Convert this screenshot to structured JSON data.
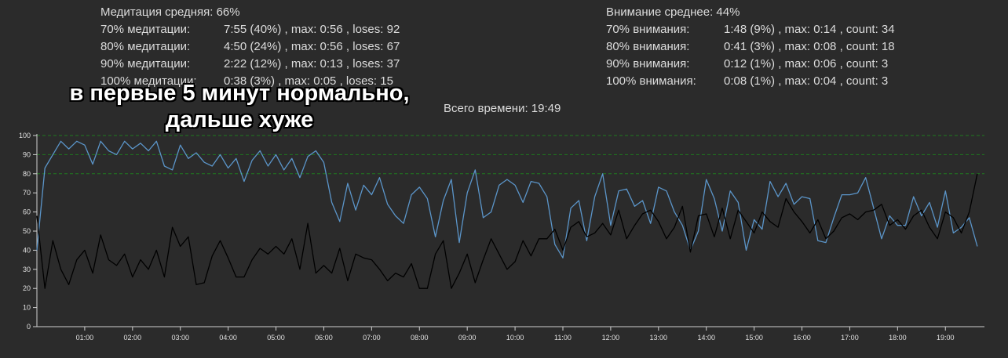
{
  "meditation": {
    "title": "Медитация средняя: 66%",
    "rows": [
      {
        "label": "70% медитации:",
        "value": "7:55 (40%) , max: 0:56 , loses: 92"
      },
      {
        "label": "80% медитации:",
        "value": "4:50 (24%) , max: 0:56 , loses: 67"
      },
      {
        "label": "90% медитации:",
        "value": "2:22 (12%) , max: 0:13 , loses: 37"
      },
      {
        "label": "100% медитации:",
        "value": "0:38 (3%) , max: 0:05 , loses: 15"
      }
    ]
  },
  "attention": {
    "title": "Внимание среднее: 44%",
    "rows": [
      {
        "label": "70% внимания:",
        "value": "1:48 (9%) , max: 0:14 , count: 34"
      },
      {
        "label": "80% внимания:",
        "value": "0:41 (3%) , max: 0:08 , count: 18"
      },
      {
        "label": "90% внимания:",
        "value": "0:12 (1%) , max: 0:06 , count: 3"
      },
      {
        "label": "100% внимания:",
        "value": "0:08 (1%) , max: 0:04 , count: 3"
      }
    ]
  },
  "total_time": "Всего времени: 19:49",
  "annotation": {
    "line1": "в первые 5 минут нормально,",
    "line2": "дальше хуже"
  },
  "colors": {
    "meditation": "#5b95c9",
    "attention": "#000000",
    "threshold": "#1f7a1f",
    "axis": "#cfcfcf"
  },
  "chart_data": {
    "type": "line",
    "title": "",
    "xlabel": "",
    "ylabel": "",
    "ylim": [
      0,
      100
    ],
    "xlim_seconds": [
      0,
      1189
    ],
    "y_ticks": [
      "0",
      "10",
      "20",
      "30",
      "40",
      "50",
      "60",
      "70",
      "80",
      "90",
      "100"
    ],
    "x_ticks": [
      "01:00",
      "02:00",
      "03:00",
      "04:00",
      "05:00",
      "06:00",
      "07:00",
      "08:00",
      "09:00",
      "10:00",
      "11:00",
      "12:00",
      "13:00",
      "14:00",
      "15:00",
      "16:00",
      "17:00",
      "18:00",
      "19:00"
    ],
    "threshold_lines": [
      80,
      90,
      100
    ],
    "grid": false,
    "legend": "none",
    "series": [
      {
        "key": "meditation",
        "step_seconds": 10,
        "values": [
          40,
          83,
          90,
          97,
          93,
          97,
          95,
          85,
          97,
          92,
          90,
          97,
          93,
          96,
          92,
          97,
          84,
          82,
          95,
          88,
          91,
          86,
          84,
          90,
          83,
          88,
          76,
          87,
          92,
          84,
          90,
          82,
          88,
          78,
          89,
          92,
          86,
          65,
          55,
          75,
          61,
          74,
          69,
          78,
          64,
          58,
          54,
          69,
          73,
          67,
          47,
          66,
          77,
          44,
          70,
          82,
          57,
          60,
          74,
          77,
          74,
          65,
          76,
          75,
          68,
          43,
          36,
          62,
          66,
          45,
          68,
          80,
          53,
          71,
          72,
          63,
          66,
          54,
          73,
          71,
          60,
          53,
          40,
          50,
          77,
          67,
          50,
          71,
          65,
          40,
          56,
          51,
          76,
          68,
          75,
          64,
          68,
          67,
          45,
          44,
          57,
          69,
          69,
          70,
          78,
          62,
          46,
          58,
          53,
          53,
          68,
          58,
          65,
          52,
          71,
          49,
          52,
          57,
          42
        ]
      },
      {
        "key": "attention",
        "step_seconds": 10,
        "values": [
          58,
          20,
          45,
          30,
          22,
          35,
          40,
          28,
          48,
          35,
          32,
          38,
          26,
          35,
          30,
          40,
          26,
          52,
          42,
          47,
          22,
          23,
          37,
          45,
          36,
          26,
          26,
          35,
          41,
          38,
          42,
          38,
          46,
          30,
          54,
          28,
          32,
          28,
          41,
          24,
          38,
          36,
          35,
          30,
          24,
          28,
          26,
          33,
          20,
          20,
          38,
          45,
          20,
          28,
          38,
          23,
          35,
          46,
          38,
          30,
          34,
          45,
          37,
          46,
          46,
          51,
          40,
          52,
          55,
          47,
          49,
          54,
          48,
          61,
          46,
          53,
          59,
          61,
          55,
          46,
          52,
          63,
          39,
          58,
          59,
          47,
          62,
          46,
          61,
          55,
          49,
          60,
          55,
          52,
          67,
          60,
          55,
          49,
          56,
          46,
          50,
          57,
          59,
          56,
          60,
          61,
          64,
          53,
          56,
          51,
          58,
          61,
          52,
          46,
          60,
          57,
          49,
          60,
          80
        ]
      }
    ]
  }
}
